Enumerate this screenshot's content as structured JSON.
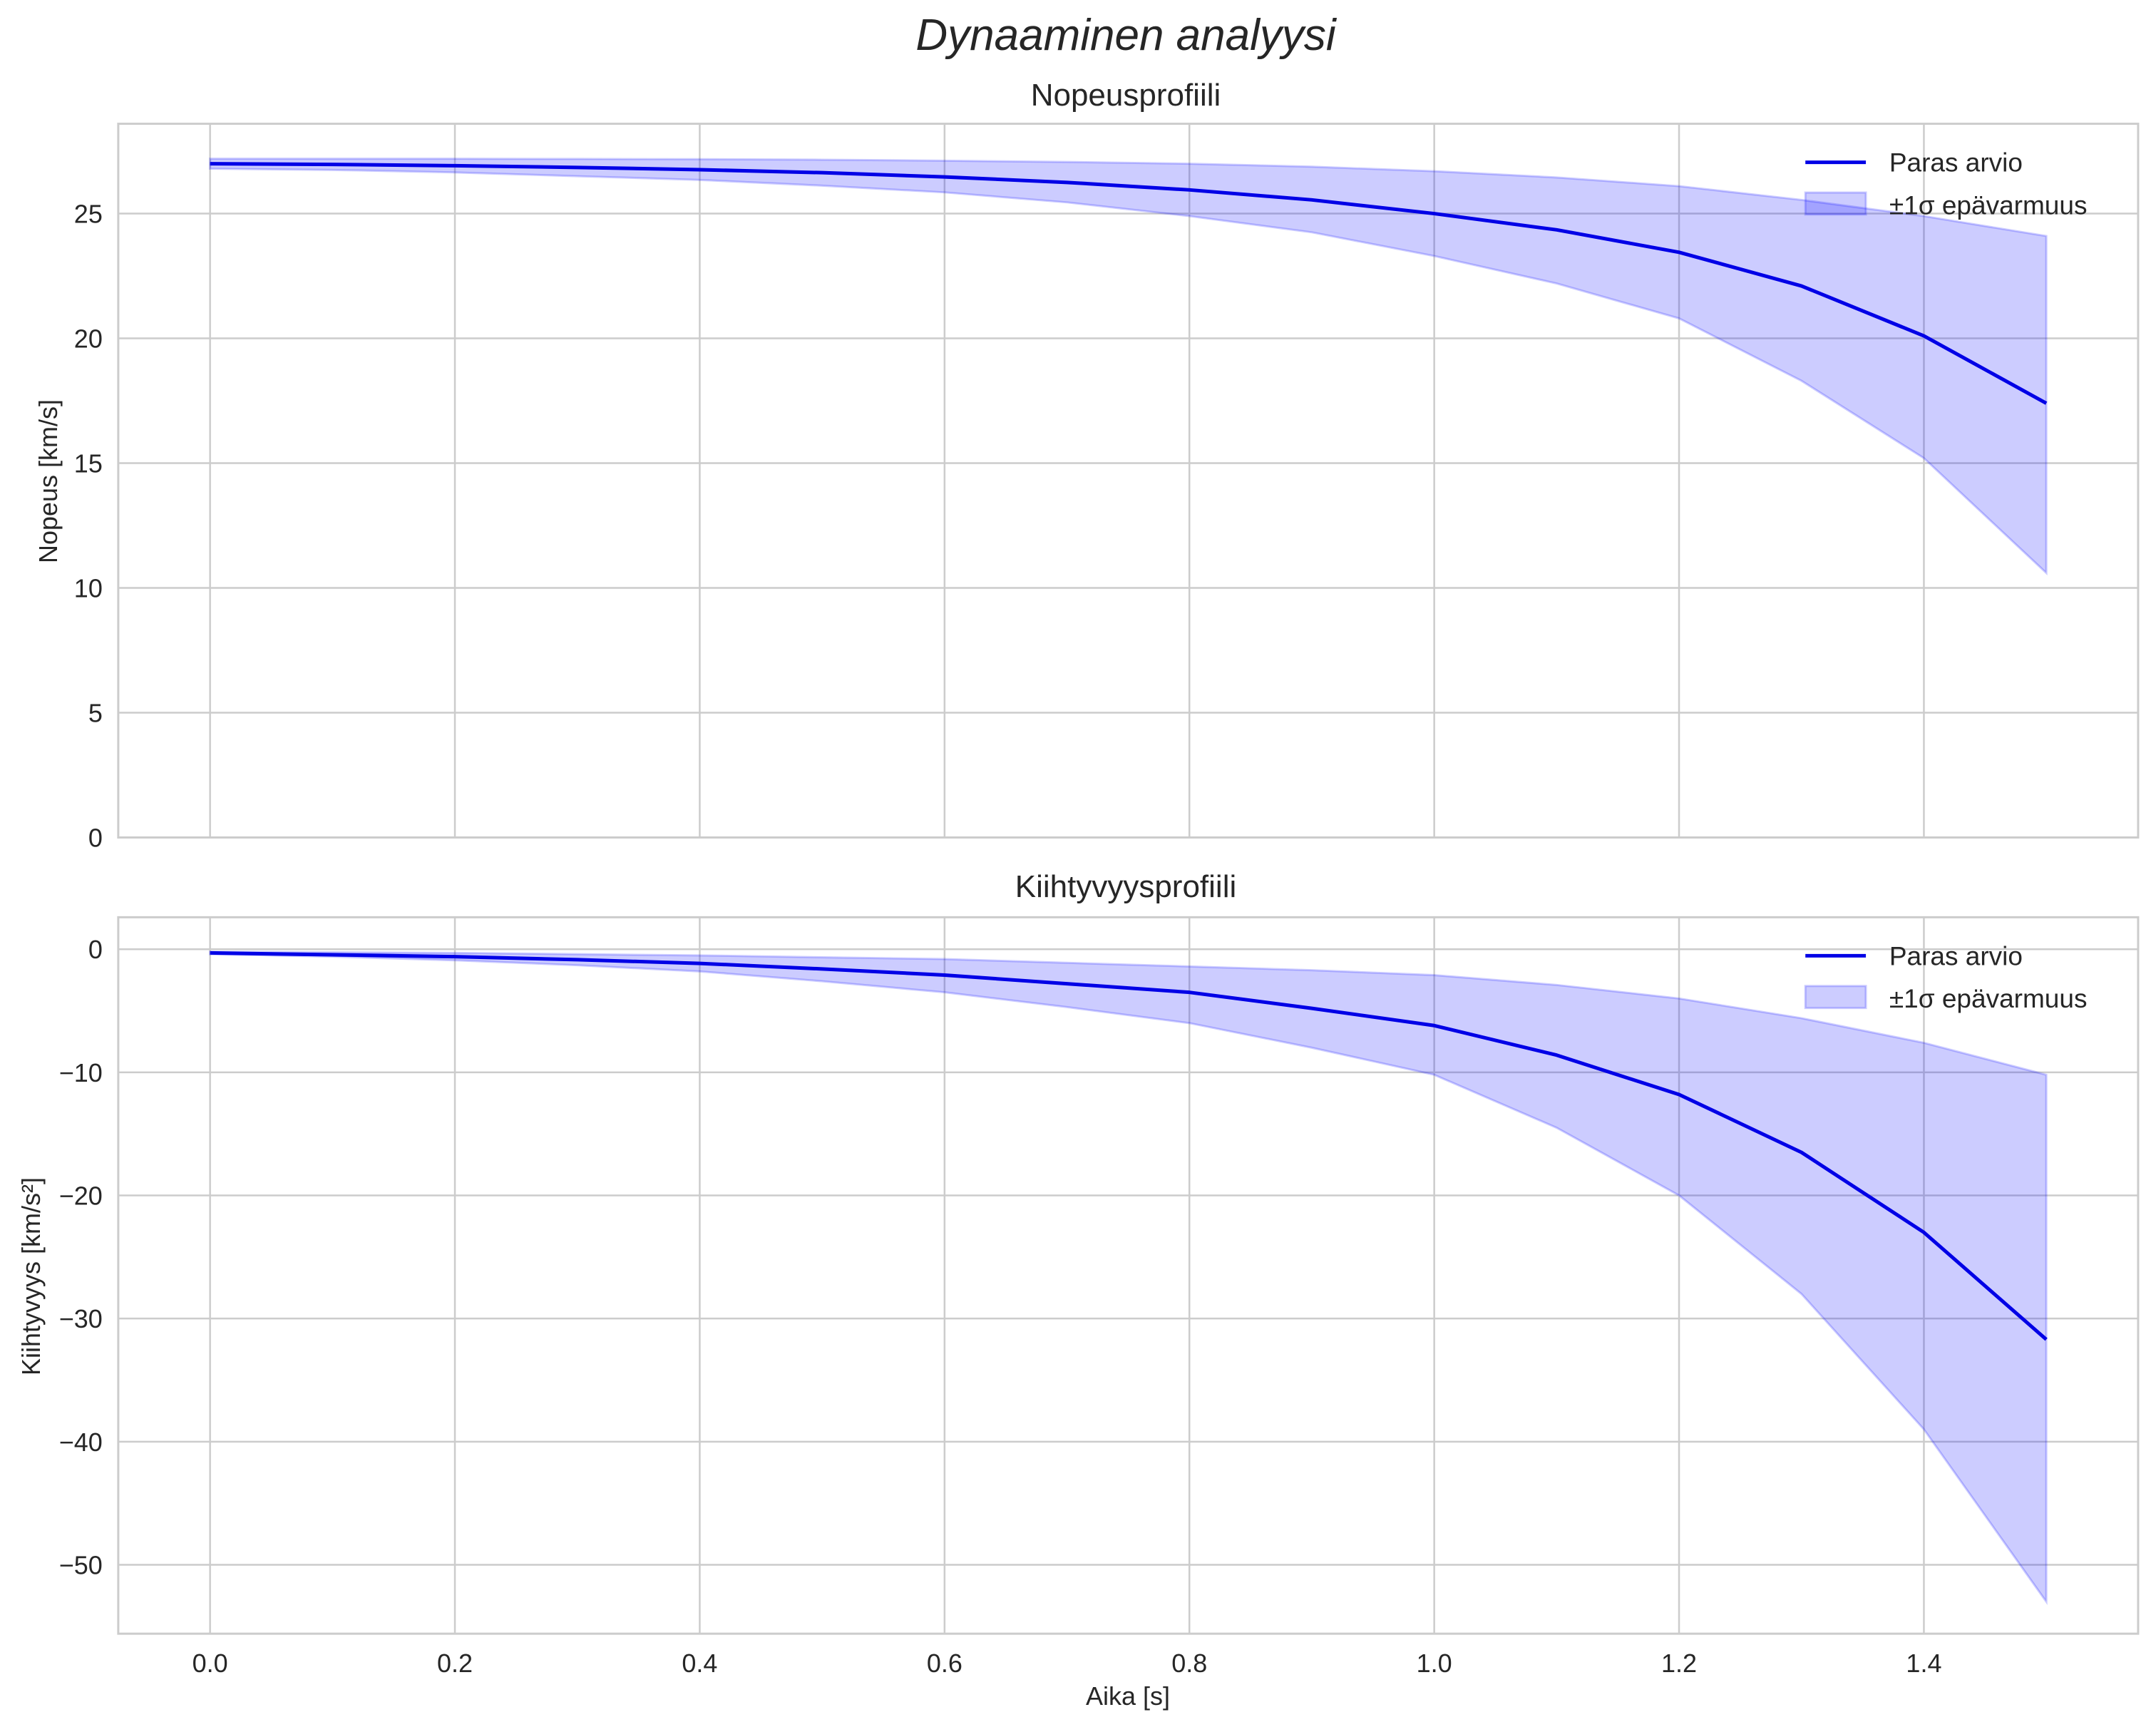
{
  "figure": {
    "suptitle": "Dynaaminen analyysi",
    "xlabel": "Aika [s]",
    "colors": {
      "line": "#0000e6",
      "band": "#0000ff",
      "grid": "#cccccc",
      "text": "#262626"
    }
  },
  "chart_data": [
    {
      "type": "line",
      "title": "Nopeusprofiili",
      "xlabel": "",
      "ylabel": "Nopeus [km/s]",
      "xlim": [
        -0.075,
        1.575
      ],
      "ylim": [
        0,
        28.6
      ],
      "xticks": [
        0.0,
        0.2,
        0.4,
        0.6,
        0.8,
        1.0,
        1.2,
        1.4
      ],
      "yticks": [
        0,
        5,
        10,
        15,
        20,
        25
      ],
      "grid": true,
      "legend": {
        "position": "upper right",
        "entries": [
          "Paras arvio",
          "±1σ epävarmuus"
        ]
      },
      "x": [
        0.0,
        0.1,
        0.2,
        0.3,
        0.4,
        0.5,
        0.6,
        0.7,
        0.8,
        0.9,
        1.0,
        1.1,
        1.2,
        1.3,
        1.4,
        1.5
      ],
      "series": [
        {
          "name": "Paras arvio",
          "values": [
            27.0,
            26.97,
            26.92,
            26.85,
            26.76,
            26.64,
            26.47,
            26.25,
            25.95,
            25.55,
            25.0,
            24.35,
            23.45,
            22.1,
            20.1,
            17.4
          ]
        },
        {
          "name": "±1σ epävarmuus (upper)",
          "values": [
            27.2,
            27.2,
            27.2,
            27.19,
            27.18,
            27.16,
            27.12,
            27.07,
            27.0,
            26.88,
            26.7,
            26.45,
            26.1,
            25.55,
            24.9,
            24.1
          ]
        },
        {
          "name": "±1σ epävarmuus (lower)",
          "values": [
            26.8,
            26.75,
            26.65,
            26.5,
            26.35,
            26.12,
            25.85,
            25.45,
            24.9,
            24.25,
            23.3,
            22.2,
            20.8,
            18.3,
            15.2,
            10.6
          ]
        }
      ]
    },
    {
      "type": "line",
      "title": "Kiihtyvyysprofiili",
      "xlabel": "Aika [s]",
      "ylabel": "Kiihtyvyys [km/s²]",
      "xlim": [
        -0.075,
        1.575
      ],
      "ylim": [
        -55.6,
        2.6
      ],
      "xticks": [
        0.0,
        0.2,
        0.4,
        0.6,
        0.8,
        1.0,
        1.2,
        1.4
      ],
      "yticks": [
        0,
        -10,
        -20,
        -30,
        -40,
        -50
      ],
      "grid": true,
      "legend": {
        "position": "upper right",
        "entries": [
          "Paras arvio",
          "±1σ epävarmuus"
        ]
      },
      "x": [
        0.0,
        0.1,
        0.2,
        0.3,
        0.4,
        0.5,
        0.6,
        0.7,
        0.8,
        0.9,
        1.0,
        1.1,
        1.2,
        1.3,
        1.4,
        1.5
      ],
      "series": [
        {
          "name": "Paras arvio",
          "values": [
            -0.3,
            -0.45,
            -0.6,
            -0.85,
            -1.15,
            -1.6,
            -2.1,
            -2.8,
            -3.5,
            -4.8,
            -6.2,
            -8.6,
            -11.8,
            -16.5,
            -23.0,
            -31.7
          ]
        },
        {
          "name": "±1σ epävarmuus (upper)",
          "values": [
            -0.2,
            -0.25,
            -0.3,
            -0.4,
            -0.5,
            -0.65,
            -0.8,
            -1.1,
            -1.4,
            -1.7,
            -2.1,
            -2.9,
            -4.0,
            -5.6,
            -7.6,
            -10.2
          ]
        },
        {
          "name": "±1σ epävarmuus (lower)",
          "values": [
            -0.4,
            -0.6,
            -0.9,
            -1.3,
            -1.8,
            -2.6,
            -3.5,
            -4.7,
            -6.0,
            -8.0,
            -10.2,
            -14.5,
            -20.0,
            -28.0,
            -39.0,
            -53.0
          ]
        }
      ]
    }
  ]
}
